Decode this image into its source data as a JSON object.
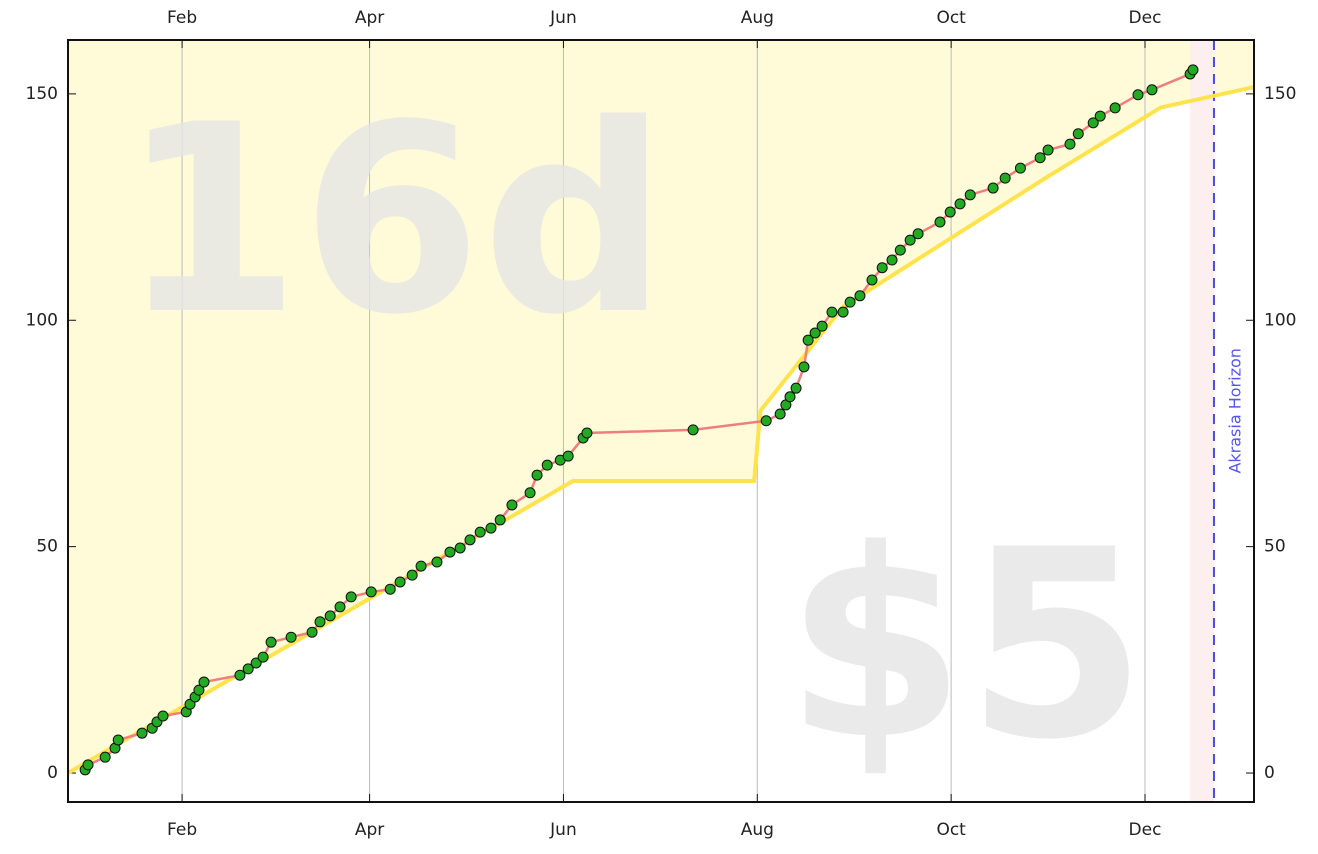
{
  "chart_data": {
    "type": "line",
    "annotations": [
      "16d",
      "$5"
    ],
    "horizon": {
      "x": 356.7,
      "label": "Akrasia Horizon"
    },
    "x": [
      1.5,
      2.4,
      7.8,
      10.9,
      11.9,
      19.4,
      22.6,
      24.1,
      26,
      33.3,
      34.5,
      36.1,
      37.3,
      38.9,
      50.2,
      52.8,
      55.3,
      57.5,
      60,
      66.3,
      72.9,
      75.4,
      78.6,
      81.7,
      85.2,
      91.5,
      97.5,
      100.6,
      104.4,
      107.2,
      112.2,
      116.3,
      119.5,
      122.6,
      125.8,
      129.2,
      132.1,
      135.8,
      141.5,
      143.7,
      146.9,
      151,
      153.5,
      158.2,
      159.4,
      192.8,
      215.8,
      220.2,
      222,
      223.3,
      225.2,
      227.7,
      229,
      231.2,
      233.4,
      236.5,
      240,
      242.2,
      245.3,
      249.1,
      252.3,
      255.4,
      258,
      261.1,
      263.6,
      270.5,
      273.7,
      276.8,
      280,
      287.2,
      291,
      295.8,
      302,
      304.5,
      311.4,
      314,
      318.7,
      320.9,
      325.6,
      332.8,
      337.2,
      349.2,
      350.1
    ],
    "series": [
      {
        "color": "#ef7f7f",
        "marker_color": "#22aa22",
        "values": [
          0.7,
          1.8,
          3.5,
          5.5,
          7.3,
          8.8,
          9.9,
          11.3,
          12.6,
          13.5,
          15.2,
          16.8,
          18.3,
          20.1,
          21.6,
          23,
          24.3,
          25.6,
          28.9,
          30,
          31.1,
          33.4,
          34.7,
          36.7,
          38.9,
          40,
          40.6,
          42.2,
          43.7,
          45.7,
          46.6,
          48.8,
          49.7,
          51.5,
          53.2,
          54.1,
          55.9,
          59.2,
          61.9,
          65.8,
          68,
          69.1,
          70,
          74,
          75.1,
          75.8,
          77.8,
          79.3,
          81.3,
          83.1,
          85,
          89.7,
          95.6,
          97.2,
          98.7,
          101.8,
          101.8,
          104,
          105.4,
          108.9,
          111.6,
          113.3,
          115.5,
          117.7,
          119.1,
          121.7,
          123.9,
          125.7,
          127.7,
          129.2,
          131.4,
          133.6,
          135.9,
          137.6,
          138.9,
          141.2,
          143.6,
          145.1,
          146.9,
          149.8,
          150.9,
          154.4,
          155.3
        ]
      }
    ],
    "road": {
      "color": "#ffe34d",
      "x": [
        -3.9,
        155,
        212,
        214,
        240,
        305,
        340,
        369.3
      ],
      "values": [
        0,
        64.5,
        64.5,
        80,
        103,
        132,
        147,
        151.5
      ]
    },
    "xlim": [
      -3.9,
      369.3
    ],
    "xticks": [
      {
        "value": 32,
        "label": "Feb"
      },
      {
        "value": 91,
        "label": "Apr"
      },
      {
        "value": 152,
        "label": "Jun"
      },
      {
        "value": 213,
        "label": "Aug"
      },
      {
        "value": 274,
        "label": "Oct"
      },
      {
        "value": 335,
        "label": "Dec"
      }
    ],
    "ylim": [
      -6.4,
      161.9
    ],
    "yticks": [
      0,
      50,
      100,
      150
    ],
    "grid": true
  }
}
